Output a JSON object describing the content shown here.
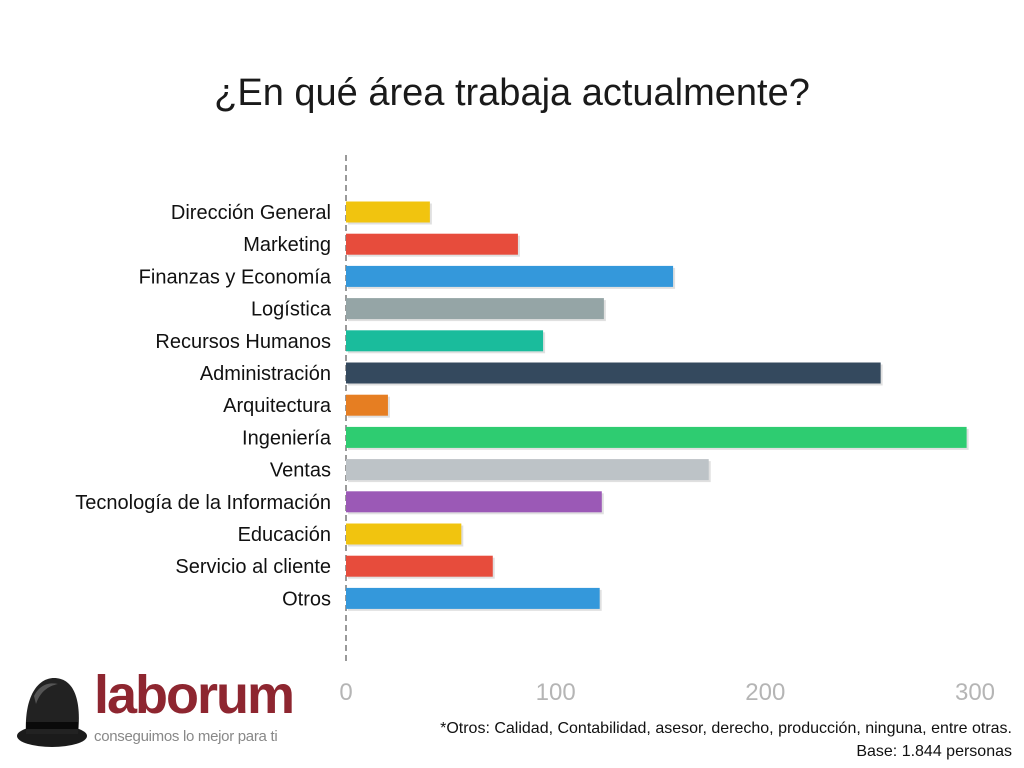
{
  "chart_data": {
    "type": "bar",
    "orientation": "horizontal",
    "title": "¿En qué área trabaja actualmente?",
    "categories": [
      "Dirección General",
      "Marketing",
      "Finanzas y Economía",
      "Logística",
      "Recursos Humanos",
      "Administración",
      "Arquitectura",
      "Ingeniería",
      "Ventas",
      "Tecnología de la Información",
      "Educación",
      "Servicio al cliente",
      "Otros"
    ],
    "values": [
      40,
      82,
      156,
      123,
      94,
      255,
      20,
      296,
      173,
      122,
      55,
      70,
      121
    ],
    "colors": [
      "#f1c40f",
      "#e74c3c",
      "#3498db",
      "#95a5a6",
      "#1abc9c",
      "#34495e",
      "#e67e22",
      "#2ecc71",
      "#bdc3c7",
      "#9b59b6",
      "#f1c40f",
      "#e74c3c",
      "#3498db"
    ],
    "xticks": [
      "0",
      "100",
      "200",
      "300"
    ],
    "xlim": [
      0,
      300
    ],
    "xlabel": "",
    "ylabel": "",
    "grid": false,
    "legend": "none"
  },
  "footnote": "*Otros: Calidad, Contabilidad, asesor,  derecho, producción, ninguna, entre otras.",
  "base": "Base: 1.844 personas",
  "logo": {
    "word": "laborum",
    "tagline": "conseguimos lo mejor para ti",
    "icon": "bowler-hat-icon"
  }
}
